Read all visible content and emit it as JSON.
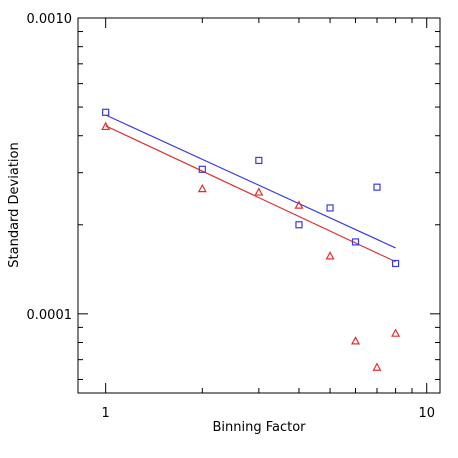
{
  "chart_data": {
    "type": "scatter",
    "title": "",
    "xlabel": "Binning Factor",
    "ylabel": "Standard Deviation",
    "xscale": "log",
    "yscale": "log",
    "xlim": [
      0.82,
      11
    ],
    "ylim": [
      5.4e-05,
      0.001
    ],
    "grid": false,
    "x_ticks": [
      {
        "value": 1,
        "label": "1"
      },
      {
        "value": 10,
        "label": "10"
      }
    ],
    "y_ticks": [
      {
        "value": 0.0001,
        "label": "0.0001"
      },
      {
        "value": 0.001,
        "label": "0.0010"
      }
    ],
    "series": [
      {
        "marker": "square",
        "color": "#3a3adf",
        "points": [
          {
            "x": 1,
            "y": 0.00048
          },
          {
            "x": 2,
            "y": 0.000308
          },
          {
            "x": 3,
            "y": 0.00033
          },
          {
            "x": 4,
            "y": 0.0002
          },
          {
            "x": 5,
            "y": 0.000228
          },
          {
            "x": 6,
            "y": 0.000175
          },
          {
            "x": 7,
            "y": 0.000268
          },
          {
            "x": 8,
            "y": 0.000148
          }
        ],
        "fit": {
          "x": [
            1,
            8
          ],
          "y": [
            0.00047,
            0.000167
          ]
        }
      },
      {
        "marker": "triangle",
        "color": "#e03030",
        "points": [
          {
            "x": 1,
            "y": 0.00043
          },
          {
            "x": 2,
            "y": 0.000265
          },
          {
            "x": 3,
            "y": 0.000258
          },
          {
            "x": 4,
            "y": 0.000233
          },
          {
            "x": 5,
            "y": 0.000157
          },
          {
            "x": 6,
            "y": 8.1e-05
          },
          {
            "x": 7,
            "y": 6.6e-05
          },
          {
            "x": 8,
            "y": 8.6e-05
          }
        ],
        "fit": {
          "x": [
            1,
            8
          ],
          "y": [
            0.000432,
            0.00015
          ]
        }
      }
    ]
  }
}
